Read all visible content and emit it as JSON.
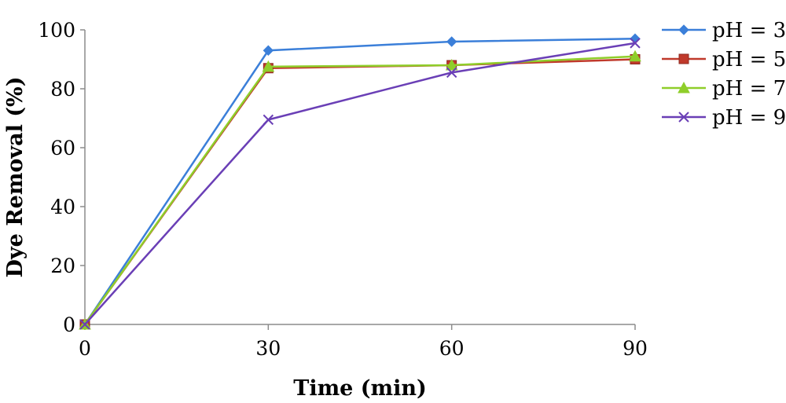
{
  "chart_data": {
    "type": "line",
    "title": "",
    "xlabel": "Time (min)",
    "ylabel": "Dye Removal (%)",
    "x": [
      0,
      30,
      60,
      90
    ],
    "x_tick_labels": [
      "0",
      "30",
      "60",
      "90"
    ],
    "xlim": [
      0,
      90
    ],
    "ylim": [
      0,
      100
    ],
    "y_ticks": [
      0,
      20,
      40,
      60,
      80,
      100
    ],
    "grid": false,
    "legend_position": "right",
    "series": [
      {
        "name": "pH = 3",
        "values": [
          0,
          93,
          96,
          97
        ],
        "color": "#3b7fd9",
        "marker": "diamond"
      },
      {
        "name": "pH = 5",
        "values": [
          0,
          87,
          88,
          90
        ],
        "color": "#c0392b",
        "marker": "square"
      },
      {
        "name": "pH = 7",
        "values": [
          0,
          87.5,
          88,
          91
        ],
        "color": "#8fce2a",
        "marker": "triangle"
      },
      {
        "name": "pH = 9",
        "values": [
          0,
          69.5,
          85.5,
          95.5
        ],
        "color": "#6a3fb6",
        "marker": "x"
      }
    ]
  }
}
